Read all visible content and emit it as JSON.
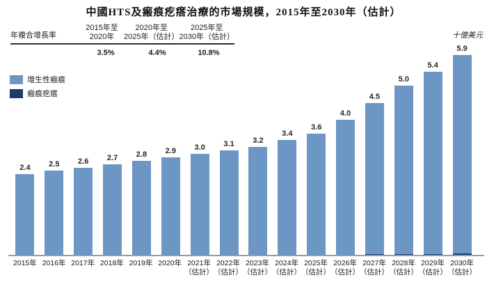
{
  "title": "中國HTS及瘢痕疙瘩治療的市場規模，2015年至2030年（估計）",
  "unit_label": "十億美元",
  "cagr_table": {
    "row_label": "年複合增長率",
    "columns": [
      {
        "line1": "2015年至",
        "line2": "2020年",
        "value": "3.5%"
      },
      {
        "line1": "2020年至",
        "line2": "2025年（估計）",
        "value": "4.4%"
      },
      {
        "line1": "2025年至",
        "line2": "2030年（估計）",
        "value": "10.8%"
      }
    ]
  },
  "legend": [
    {
      "label": "增生性瘢痕",
      "color": "#6C96C4"
    },
    {
      "label": "瘢痕疙瘩",
      "color": "#1E3A67"
    }
  ],
  "colors": {
    "hypertrophic_scar": "#6C96C4",
    "keloid": "#1E3A67",
    "axis_line": "#9c9c9c"
  },
  "chart_data": {
    "type": "bar",
    "stacked": true,
    "title": "中國HTS及瘢痕疙瘩治療的市場規模，2015年至2030年（估計）",
    "ylabel": "十億美元",
    "xlabel": "",
    "grid": false,
    "legend_position": "top-left",
    "ylim": [
      0,
      6.3
    ],
    "categories": [
      {
        "year": "2015年",
        "note": ""
      },
      {
        "year": "2016年",
        "note": ""
      },
      {
        "year": "2017年",
        "note": ""
      },
      {
        "year": "2018年",
        "note": ""
      },
      {
        "year": "2019年",
        "note": ""
      },
      {
        "year": "2020年",
        "note": ""
      },
      {
        "year": "2021年",
        "note": "（估計）"
      },
      {
        "year": "2022年",
        "note": "（估計）"
      },
      {
        "year": "2023年",
        "note": "（估計）"
      },
      {
        "year": "2024年",
        "note": "（估計）"
      },
      {
        "year": "2025年",
        "note": "（估計）"
      },
      {
        "year": "2026年",
        "note": "（估計）"
      },
      {
        "year": "2027年",
        "note": "（估計）"
      },
      {
        "year": "2028年",
        "note": "（估計）"
      },
      {
        "year": "2029年",
        "note": "（估計）"
      },
      {
        "year": "2030年",
        "note": "（估計）"
      }
    ],
    "totals": [
      2.4,
      2.5,
      2.6,
      2.7,
      2.8,
      2.9,
      3.0,
      3.1,
      3.2,
      3.4,
      3.6,
      4.0,
      4.5,
      5.0,
      5.4,
      5.9
    ],
    "series": [
      {
        "name": "增生性瘢痕",
        "color": "#6C96C4",
        "values": [
          2.38,
          2.48,
          2.58,
          2.68,
          2.77,
          2.87,
          2.96,
          3.06,
          3.16,
          3.36,
          3.55,
          3.95,
          4.44,
          4.94,
          5.33,
          5.82
        ]
      },
      {
        "name": "瘢痕疙瘩",
        "color": "#1E3A67",
        "values": [
          0.02,
          0.02,
          0.02,
          0.02,
          0.03,
          0.03,
          0.04,
          0.04,
          0.04,
          0.04,
          0.05,
          0.05,
          0.06,
          0.06,
          0.07,
          0.08
        ]
      }
    ]
  }
}
